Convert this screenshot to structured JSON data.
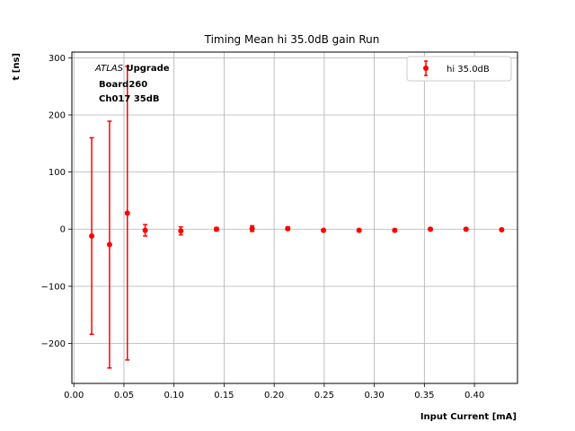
{
  "chart_data": {
    "type": "scatter",
    "title": "Timing Mean hi 35.0dB gain Run",
    "xlabel": "Input Current [mA]",
    "ylabel": "t [ns]",
    "xlim": [
      -0.002,
      0.443
    ],
    "ylim": [
      -270,
      310
    ],
    "xticks": [
      0.0,
      0.05,
      0.1,
      0.15,
      0.2,
      0.25,
      0.3,
      0.35,
      0.4
    ],
    "xtick_labels": [
      "0.00",
      "0.05",
      "0.10",
      "0.15",
      "0.20",
      "0.25",
      "0.30",
      "0.35",
      "0.40"
    ],
    "yticks": [
      -200,
      -100,
      0,
      100,
      200,
      300
    ],
    "ytick_labels": [
      "−200",
      "−100",
      "0",
      "100",
      "200",
      "300"
    ],
    "grid": true,
    "legend_position": "top-right",
    "marker_color": "#ff0000",
    "annotations": {
      "experiment_italic": "ATLAS",
      "experiment_bold": " Upgrade",
      "line2": "Board260",
      "line3": "Ch017 35dB"
    },
    "series": [
      {
        "name": "hi 35.0dB",
        "x": [
          0.0178,
          0.0356,
          0.0534,
          0.0712,
          0.1068,
          0.1424,
          0.178,
          0.2136,
          0.2492,
          0.2848,
          0.3204,
          0.356,
          0.3916,
          0.4272
        ],
        "y": [
          -12,
          -27,
          28,
          -2,
          -3,
          0,
          1,
          1,
          -2,
          -2,
          -2,
          0,
          0,
          -1
        ],
        "yerr": [
          172,
          216,
          257,
          10,
          7,
          3,
          5,
          3,
          2,
          2,
          2,
          2,
          2,
          2
        ]
      }
    ]
  }
}
